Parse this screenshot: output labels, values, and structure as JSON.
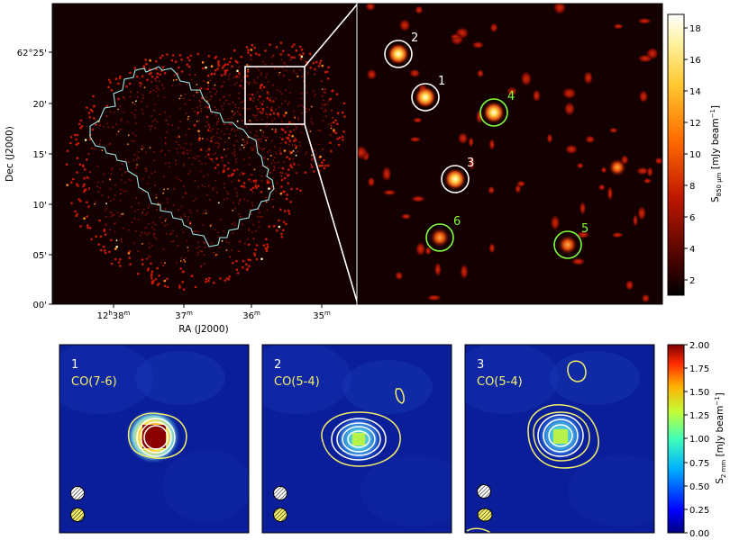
{
  "top_left": {
    "y_label": "Dec (J2000)",
    "x_label": "RA (J2000)",
    "y_ticks": [
      "62°25'",
      "20'",
      "15'",
      "10'",
      "05'",
      "00'"
    ],
    "x_ticks": [
      {
        "main": "12",
        "h": "h",
        "m": "38",
        "mm": "m"
      },
      {
        "main": "37",
        "mm": "m"
      },
      {
        "main": "36",
        "mm": "m"
      },
      {
        "main": "35",
        "mm": "m"
      }
    ]
  },
  "zoom": {
    "sources": [
      {
        "id": "2",
        "color": "#ffffff"
      },
      {
        "id": "1",
        "color": "#ffffff"
      },
      {
        "id": "3",
        "color": "#ffffff"
      },
      {
        "id": "4",
        "color": "#7fff3a"
      },
      {
        "id": "6",
        "color": "#7fff3a"
      },
      {
        "id": "5",
        "color": "#7fff3a"
      }
    ]
  },
  "colorbar_top": {
    "ticks": [
      "18",
      "16",
      "14",
      "12",
      "10",
      "8",
      "6",
      "4",
      "2"
    ],
    "label_main": "S",
    "label_sub": "850 μm",
    "label_unit": " [mJy beam",
    "label_exp": "−1",
    "label_end": "]"
  },
  "colorbar_bottom": {
    "ticks": [
      "2.00",
      "1.75",
      "1.50",
      "1.25",
      "1.00",
      "0.75",
      "0.50",
      "0.25",
      "0.00"
    ],
    "label_main": "S",
    "label_sub": "2 mm",
    "label_unit": " [mJy beam",
    "label_exp": "−1",
    "label_end": "]"
  },
  "panels": [
    {
      "num": "1",
      "line": "CO(7-6)"
    },
    {
      "num": "2",
      "line": "CO(5-4)"
    },
    {
      "num": "3",
      "line": "CO(5-4)"
    }
  ],
  "colors": {
    "map_bg": "#140000",
    "panel_bg": "#0a1e9a",
    "contour_white": "#ffffff",
    "contour_yellow": "#f4f06a",
    "hst_outline": "#9fe6e6",
    "green_label": "#7fff3a"
  }
}
